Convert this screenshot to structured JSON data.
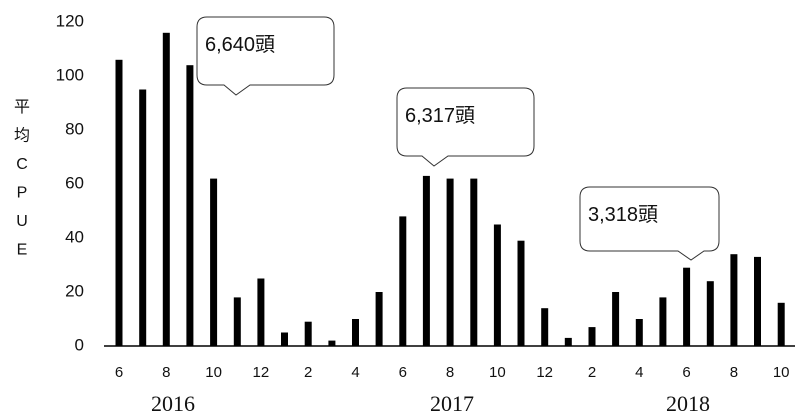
{
  "chart_data": {
    "type": "bar",
    "title": "",
    "xlabel": "",
    "ylabel": "平均CPUE",
    "ylim": [
      0,
      120
    ],
    "yticks": [
      "0",
      "20",
      "40",
      "60",
      "80",
      "100",
      "120"
    ],
    "grid": false,
    "bar_color": "#000000",
    "categories": [
      "6",
      "7",
      "8",
      "9",
      "10",
      "11",
      "12",
      "1",
      "2",
      "3",
      "4",
      "5",
      "6",
      "7",
      "8",
      "9",
      "10",
      "11",
      "12",
      "1",
      "2",
      "3",
      "4",
      "5",
      "6",
      "7",
      "8",
      "9",
      "10"
    ],
    "values": [
      106,
      95,
      116,
      104,
      62,
      18,
      25,
      5,
      9,
      2,
      10,
      20,
      48,
      63,
      62,
      62,
      45,
      39,
      14,
      3,
      7,
      20,
      10,
      18,
      29,
      24,
      34,
      33,
      16
    ],
    "shown_tick_labels": [
      "6",
      "8",
      "10",
      "12",
      "2",
      "4",
      "6",
      "8",
      "10",
      "12",
      "2",
      "4",
      "6",
      "8",
      "10"
    ],
    "years": [
      "2016",
      "2017",
      "2018"
    ],
    "annotations": [
      "6,640頭",
      "6,317頭",
      "3,318頭"
    ]
  }
}
